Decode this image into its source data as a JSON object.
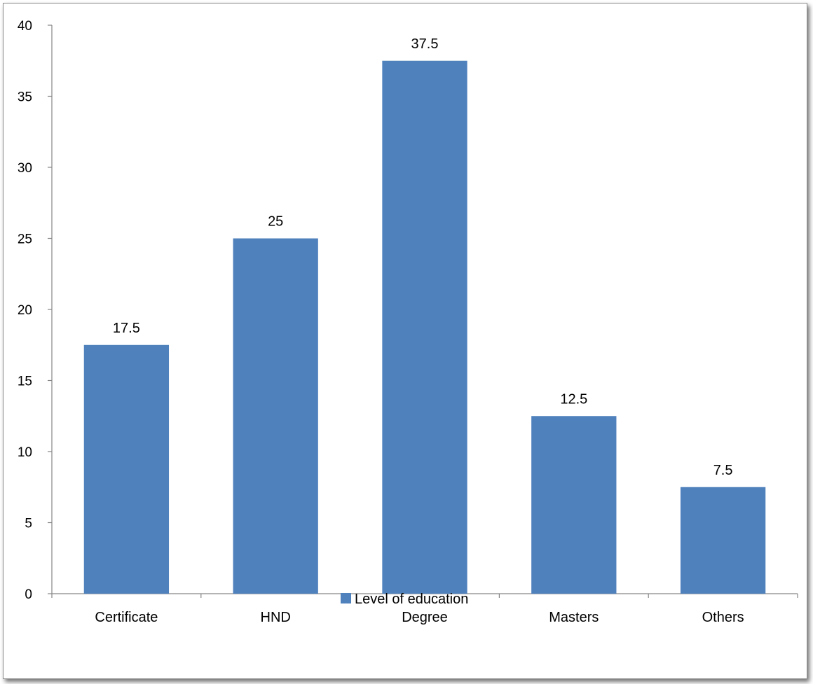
{
  "chart_data": {
    "type": "bar",
    "title": "",
    "xlabel": "",
    "ylabel": "",
    "categories": [
      "Certificate",
      "HND",
      "Degree",
      "Masters",
      "Others"
    ],
    "series": [
      {
        "name": "Level of education",
        "values": [
          17.5,
          25,
          37.5,
          12.5,
          7.5
        ],
        "color": "#4f81bd"
      }
    ],
    "data_labels": [
      "17.5",
      "25",
      "37.5",
      "12.5",
      "7.5"
    ],
    "y_ticks": [
      "0",
      "5",
      "10",
      "15",
      "20",
      "25",
      "30",
      "35",
      "40"
    ],
    "ylim": [
      0,
      40
    ],
    "grid": false,
    "legend": {
      "position": "bottom",
      "label": "Level of education"
    }
  }
}
